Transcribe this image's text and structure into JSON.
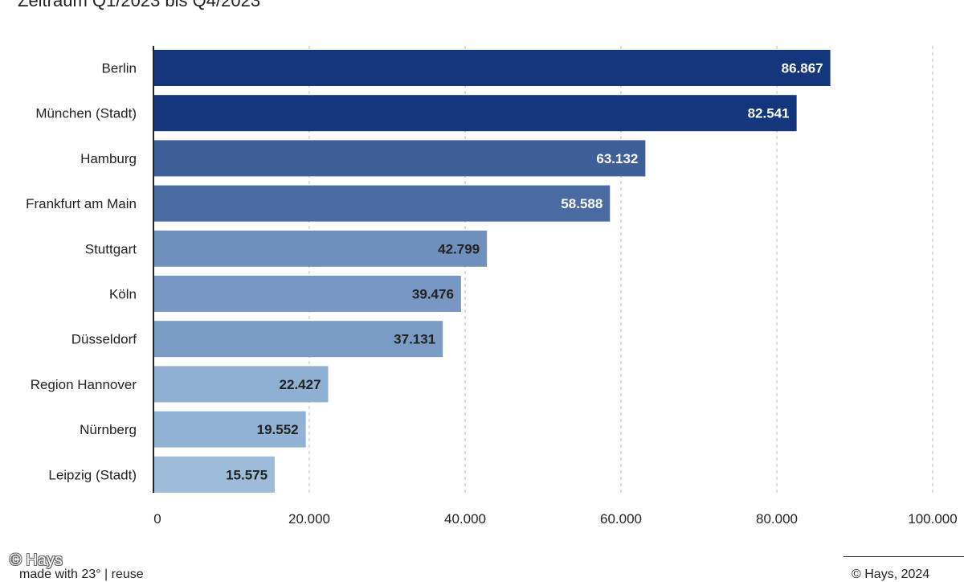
{
  "chart_data": {
    "type": "bar",
    "orientation": "horizontal",
    "subtitle": "Zeitraum Q1/2023 bis Q4/2023",
    "categories": [
      "Berlin",
      "München (Stadt)",
      "Hamburg",
      "Frankfurt am Main",
      "Stuttgart",
      "Köln",
      "Düsseldorf",
      "Region Hannover",
      "Nürnberg",
      "Leipzig (Stadt)"
    ],
    "values": [
      86867,
      82541,
      63132,
      58588,
      42799,
      39476,
      37131,
      22427,
      19552,
      15575
    ],
    "value_labels": [
      "86.867",
      "82.541",
      "63.132",
      "58.588",
      "42.799",
      "39.476",
      "37.131",
      "22.427",
      "19.552",
      "15.575"
    ],
    "bar_colors": [
      "#14367c",
      "#14367c",
      "#3f5f98",
      "#4a6ba1",
      "#6f8fbc",
      "#7898c3",
      "#7a9bc4",
      "#8fb0d3",
      "#92b2d4",
      "#9dbcda"
    ],
    "label_colors": [
      "#ffffff",
      "#ffffff",
      "#ffffff",
      "#ffffff",
      "#222222",
      "#222222",
      "#222222",
      "#222222",
      "#222222",
      "#222222"
    ],
    "xlim": [
      0,
      100000
    ],
    "xticks": [
      0,
      20000,
      40000,
      60000,
      80000,
      100000
    ],
    "xtick_labels": [
      "0",
      "20.000",
      "40.000",
      "60.000",
      "80.000",
      "100.000"
    ],
    "grid": "vertical-dashed"
  },
  "footer": {
    "watermark": "© Hays",
    "made_with": "made with 23° | reuse",
    "copyright": "© Hays, 2024"
  }
}
